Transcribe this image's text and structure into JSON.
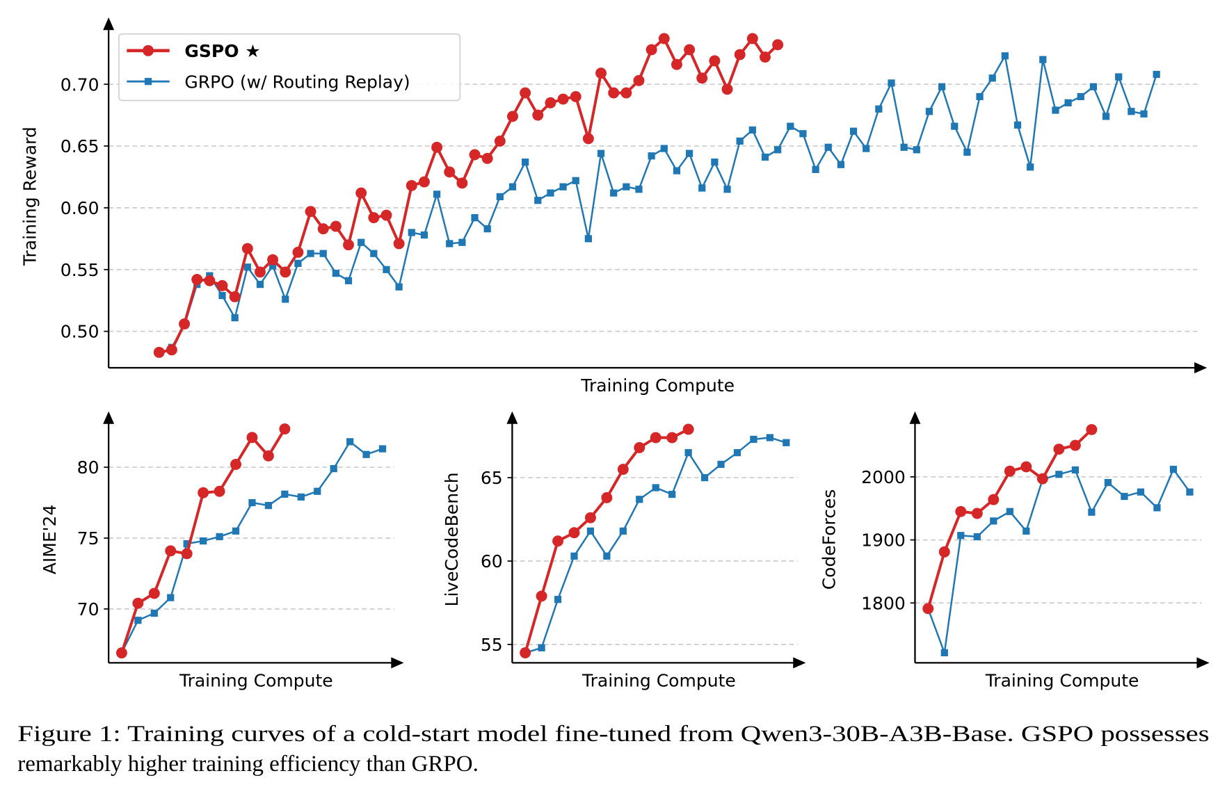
{
  "colors": {
    "gspo": "#d62728",
    "grpo": "#1f77b4",
    "grid": "#cccccc"
  },
  "legend": {
    "gspo_label": "GSPO ★",
    "grpo_label": "GRPO (w/ Routing Replay)",
    "placement": "top-left"
  },
  "caption": {
    "line1": "Figure 1: Training curves of a cold-start model fine-tuned from Qwen3-30B-A3B-Base. GSPO possesses",
    "line2": "remarkably higher training efficiency than GRPO."
  },
  "chart_data": [
    {
      "id": "reward",
      "type": "line",
      "xlabel": "Training Compute",
      "ylabel": "Training Reward",
      "ylim": [
        0.4705,
        0.749
      ],
      "xlim": [
        -4,
        83
      ],
      "grid": true,
      "yticks": [
        0.5,
        0.55,
        0.6,
        0.65,
        0.7
      ],
      "ytick_labels": [
        "0.50",
        "0.55",
        "0.60",
        "0.65",
        "0.70"
      ],
      "series": [
        {
          "name": "GSPO",
          "start": 0,
          "values": [
            0.483,
            0.485,
            0.506,
            0.542,
            0.541,
            0.537,
            0.528,
            0.567,
            0.548,
            0.558,
            0.548,
            0.564,
            0.597,
            0.583,
            0.585,
            0.57,
            0.612,
            0.592,
            0.594,
            0.571,
            0.618,
            0.621,
            0.649,
            0.629,
            0.62,
            0.643,
            0.64,
            0.654,
            0.674,
            0.693,
            0.675,
            0.685,
            0.688,
            0.69,
            0.656,
            0.709,
            0.693,
            0.693,
            0.703,
            0.728,
            0.737,
            0.716,
            0.728,
            0.705,
            0.719,
            0.696,
            0.724,
            0.737,
            0.722,
            0.732
          ]
        },
        {
          "name": "GRPO (w/ Routing Replay)",
          "start": 1,
          "values": [
            0.487,
            0.505,
            0.538,
            0.545,
            0.529,
            0.511,
            0.552,
            0.538,
            0.553,
            0.526,
            0.555,
            0.563,
            0.563,
            0.547,
            0.541,
            0.572,
            0.563,
            0.55,
            0.536,
            0.58,
            0.578,
            0.611,
            0.571,
            0.572,
            0.592,
            0.583,
            0.609,
            0.617,
            0.637,
            0.606,
            0.612,
            0.617,
            0.622,
            0.575,
            0.644,
            0.612,
            0.617,
            0.615,
            0.642,
            0.648,
            0.63,
            0.644,
            0.616,
            0.637,
            0.615,
            0.654,
            0.663,
            0.641,
            0.647,
            0.666,
            0.66,
            0.631,
            0.649,
            0.635,
            0.662,
            0.648,
            0.68,
            0.701,
            0.649,
            0.647,
            0.678,
            0.698,
            0.666,
            0.645,
            0.69,
            0.705,
            0.723,
            0.667,
            0.633,
            0.72,
            0.679,
            0.685,
            0.69,
            0.698,
            0.674,
            0.706,
            0.678,
            0.676,
            0.708
          ]
        }
      ]
    },
    {
      "id": "aime",
      "type": "line",
      "xlabel": "Training Compute",
      "ylabel": "AIME'24",
      "ylim": [
        66.2,
        83.5
      ],
      "xlim": [
        -0.8,
        17.3
      ],
      "grid": true,
      "yticks": [
        70,
        75,
        80
      ],
      "ytick_labels": [
        "70",
        "75",
        "80"
      ],
      "series": [
        {
          "name": "GSPO",
          "start": 0,
          "values": [
            66.9,
            70.4,
            71.1,
            74.1,
            73.9,
            78.2,
            78.3,
            80.2,
            82.1,
            80.8,
            82.7
          ]
        },
        {
          "name": "GRPO (w/ Routing Replay)",
          "start": 0,
          "values": [
            66.9,
            69.2,
            69.7,
            70.8,
            74.6,
            74.8,
            75.1,
            75.5,
            77.5,
            77.3,
            78.1,
            77.9,
            78.3,
            79.9,
            81.8,
            80.9,
            81.3
          ]
        }
      ]
    },
    {
      "id": "livecodebench",
      "type": "line",
      "xlabel": "Training Compute",
      "ylabel": "LiveCodeBench",
      "ylim": [
        53.9,
        68.6
      ],
      "xlim": [
        -0.8,
        17.2
      ],
      "grid": true,
      "yticks": [
        55,
        60,
        65
      ],
      "ytick_labels": [
        "55",
        "60",
        "65"
      ],
      "series": [
        {
          "name": "GSPO",
          "start": 0,
          "values": [
            54.5,
            57.9,
            61.2,
            61.7,
            62.6,
            63.8,
            65.5,
            66.8,
            67.4,
            67.4,
            67.9
          ]
        },
        {
          "name": "GRPO (w/ Routing Replay)",
          "start": 0,
          "values": [
            54.5,
            54.8,
            57.7,
            60.3,
            61.8,
            60.3,
            61.8,
            63.7,
            64.4,
            64.0,
            66.5,
            65.0,
            65.8,
            66.5,
            67.3,
            67.4,
            67.1
          ]
        }
      ]
    },
    {
      "id": "codeforces",
      "type": "line",
      "xlabel": "Training Compute",
      "ylabel": "CodeForces",
      "ylim": [
        1705,
        2094
      ],
      "xlim": [
        -0.8,
        17.2
      ],
      "grid": true,
      "yticks": [
        1800,
        1900,
        2000
      ],
      "ytick_labels": [
        "1800",
        "1900",
        "2000"
      ],
      "series": [
        {
          "name": "GSPO",
          "start": 0,
          "values": [
            1791,
            1881,
            1945,
            1942,
            1964,
            2009,
            2016,
            1997,
            2044,
            2050,
            2075
          ]
        },
        {
          "name": "GRPO (w/ Routing Replay)",
          "start": 0,
          "values": [
            1791,
            1721,
            1907,
            1905,
            1930,
            1945,
            1914,
            1996,
            2004,
            2011,
            1944,
            1991,
            1969,
            1976,
            1951,
            2012,
            1976
          ]
        }
      ]
    }
  ]
}
